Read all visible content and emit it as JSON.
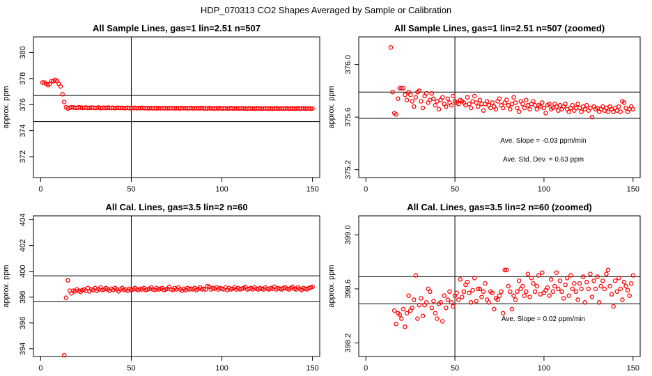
{
  "page_title": "HDP_070313  CO2 Shapes Averaged by Sample or Calibration",
  "colors": {
    "points": "#ff0000",
    "axes": "#000000",
    "background": "#ffffff"
  },
  "chart_data": [
    {
      "type": "scatter",
      "title": "All Sample Lines, gas=1 lin=2.51 n=507",
      "xlabel": "",
      "ylabel": "approx. ppm",
      "xlim": [
        -4,
        154
      ],
      "ylim": [
        370.4,
        381.2
      ],
      "xticks": [
        0,
        50,
        100,
        150
      ],
      "yticks": [
        372,
        374,
        376,
        378,
        380
      ],
      "hlines": [
        376.7,
        374.7
      ],
      "vlines": [
        50
      ],
      "series": [
        {
          "name": "sample",
          "x_start": 1,
          "x_end": 150,
          "values": [
            377.7,
            377.7,
            377.6,
            377.5,
            377.6,
            377.8,
            377.8,
            377.9,
            377.8,
            377.6,
            377.4,
            376.8,
            376.2,
            375.8,
            375.7,
            375.75,
            375.8,
            375.78,
            375.76,
            375.74,
            375.8,
            375.77,
            375.75,
            375.76,
            375.78,
            375.74,
            375.75,
            375.77,
            375.76,
            375.74,
            375.75,
            375.78,
            375.73,
            375.75,
            375.76,
            375.74,
            375.77,
            375.75,
            375.74,
            375.76,
            375.73,
            375.75,
            375.76,
            375.74,
            375.75,
            375.73,
            375.74,
            375.76,
            375.73,
            375.72,
            375.74,
            375.75,
            375.72,
            375.74,
            375.73,
            375.75,
            375.72,
            375.74,
            375.73,
            375.71,
            375.74,
            375.72,
            375.73,
            375.71,
            375.74,
            375.72,
            375.73,
            375.72,
            375.74,
            375.71,
            375.73,
            375.72,
            375.74,
            375.71,
            375.73,
            375.72,
            375.71,
            375.74,
            375.72,
            375.73,
            375.71,
            375.72,
            375.74,
            375.71,
            375.72,
            375.73,
            375.71,
            375.72,
            375.74,
            375.71,
            375.72,
            375.7,
            375.73,
            375.71,
            375.72,
            375.7,
            375.72,
            375.71,
            375.73,
            375.7,
            375.71,
            375.72,
            375.7,
            375.71,
            375.73,
            375.7,
            375.71,
            375.72,
            375.7,
            375.71,
            375.72,
            375.7,
            375.71,
            375.69,
            375.72,
            375.7,
            375.71,
            375.69,
            375.72,
            375.7,
            375.71,
            375.69,
            375.7,
            375.72,
            375.69,
            375.7,
            375.71,
            375.69,
            375.7,
            375.72,
            375.69,
            375.7,
            375.71,
            375.69,
            375.7,
            375.72,
            375.69,
            375.7,
            375.71,
            375.69,
            375.7,
            375.71,
            375.69,
            375.7,
            375.72,
            375.69,
            375.7,
            375.71,
            375.69,
            375.7
          ]
        }
      ],
      "annotations": []
    },
    {
      "type": "scatter",
      "title": "All Sample Lines, gas=1 lin=2.51 n=507 (zoomed)",
      "xlabel": "",
      "ylabel": "approx. ppm",
      "xlim": [
        -4,
        154
      ],
      "ylim": [
        375.14,
        376.21
      ],
      "xticks": [
        0,
        50,
        100,
        150
      ],
      "yticks": [
        375.2,
        375.6,
        376.0
      ],
      "hlines": [
        375.79,
        375.59
      ],
      "vlines": [
        50
      ],
      "series": [
        {
          "name": "sample-zoomed",
          "x_start": 14,
          "x_end": 150,
          "values": [
            376.13,
            375.79,
            375.63,
            375.62,
            375.74,
            375.82,
            375.82,
            375.82,
            375.77,
            375.73,
            375.79,
            375.77,
            375.72,
            375.68,
            375.75,
            375.79,
            375.8,
            375.72,
            375.67,
            375.76,
            375.78,
            375.71,
            375.73,
            375.78,
            375.74,
            375.69,
            375.72,
            375.66,
            375.73,
            375.75,
            375.7,
            375.68,
            375.74,
            375.71,
            375.69,
            375.76,
            375.72,
            375.71,
            375.7,
            375.73,
            375.72,
            375.71,
            375.69,
            375.75,
            375.7,
            375.67,
            375.72,
            375.76,
            375.71,
            375.68,
            375.73,
            375.7,
            375.65,
            375.7,
            375.72,
            375.69,
            375.67,
            375.71,
            375.68,
            375.66,
            375.72,
            375.74,
            375.69,
            375.67,
            375.71,
            375.73,
            375.69,
            375.66,
            375.7,
            375.75,
            375.71,
            375.67,
            375.64,
            375.72,
            375.7,
            375.67,
            375.73,
            375.69,
            375.66,
            375.7,
            375.72,
            375.69,
            375.66,
            375.69,
            375.68,
            375.71,
            375.67,
            375.63,
            375.69,
            375.7,
            375.66,
            375.67,
            375.7,
            375.68,
            375.65,
            375.69,
            375.66,
            375.68,
            375.7,
            375.66,
            375.64,
            375.67,
            375.69,
            375.65,
            375.67,
            375.7,
            375.67,
            375.64,
            375.68,
            375.66,
            375.69,
            375.65,
            375.67,
            375.6,
            375.68,
            375.66,
            375.67,
            375.64,
            375.66,
            375.68,
            375.65,
            375.67,
            375.64,
            375.68,
            375.66,
            375.64,
            375.67,
            375.65,
            375.68,
            375.64,
            375.72,
            375.71,
            375.67,
            375.64,
            375.66,
            375.68,
            375.66
          ]
        }
      ],
      "annotations": [
        {
          "label": "Ave. Slope =",
          "value": "-0.03",
          "unit": "ppm/min"
        },
        {
          "label": "Ave. Std. Dev. =",
          "value": "0.63",
          "unit": "ppm"
        }
      ]
    },
    {
      "type": "scatter",
      "title": "All Cal. Lines, gas=3.5 lin=2 n=60",
      "xlabel": "",
      "ylabel": "approx. ppm",
      "xlim": [
        -4,
        154
      ],
      "ylim": [
        393.4,
        404.3
      ],
      "xticks": [
        0,
        50,
        100,
        150
      ],
      "yticks": [
        394,
        396,
        398,
        400,
        402,
        404
      ],
      "hlines": [
        399.65,
        397.65
      ],
      "vlines": [
        50
      ],
      "series": [
        {
          "name": "cal",
          "x_start": 13,
          "x_end": 150,
          "values": [
            393.5,
            397.95,
            399.3,
            398.5,
            398.3,
            398.5,
            398.45,
            398.6,
            398.5,
            398.4,
            398.55,
            398.6,
            398.5,
            398.7,
            398.45,
            398.6,
            398.55,
            398.7,
            398.5,
            398.6,
            398.75,
            398.55,
            398.6,
            398.7,
            398.6,
            398.5,
            398.65,
            398.55,
            398.7,
            398.6,
            398.45,
            398.6,
            398.7,
            398.55,
            398.6,
            398.5,
            398.65,
            398.55,
            398.6,
            398.7,
            398.6,
            398.55,
            398.65,
            398.6,
            398.7,
            398.55,
            398.6,
            398.65,
            398.75,
            398.6,
            398.55,
            398.7,
            398.6,
            398.65,
            398.7,
            398.55,
            398.6,
            398.65,
            398.8,
            398.6,
            398.55,
            398.7,
            398.6,
            398.75,
            398.6,
            398.5,
            398.65,
            398.55,
            398.7,
            398.6,
            398.65,
            398.6,
            398.7,
            398.55,
            398.65,
            398.75,
            398.6,
            398.65,
            398.6,
            398.85,
            398.8,
            398.6,
            398.7,
            398.65,
            398.75,
            398.6,
            398.7,
            398.65,
            398.6,
            398.75,
            398.55,
            398.7,
            398.6,
            398.65,
            398.75,
            398.6,
            398.7,
            398.6,
            398.65,
            398.7,
            398.8,
            398.6,
            398.65,
            398.7,
            398.6,
            398.75,
            398.65,
            398.6,
            398.7,
            398.65,
            398.6,
            398.75,
            398.65,
            398.6,
            398.7,
            398.65,
            398.8,
            398.6,
            398.7,
            398.65,
            398.6,
            398.7,
            398.75,
            398.65,
            398.6,
            398.7,
            398.8,
            398.65,
            398.6,
            398.75,
            398.65,
            398.55,
            398.7,
            398.65,
            398.6,
            398.7,
            398.75,
            398.8
          ]
        }
      ],
      "annotations": []
    },
    {
      "type": "scatter",
      "title": "All Cal. Lines, gas=3.5 lin=2 n=60 (zoomed)",
      "xlabel": "",
      "ylabel": "approx. ppm",
      "xlim": [
        -4,
        154
      ],
      "ylim": [
        398.1,
        399.14
      ],
      "xticks": [
        0,
        50,
        100,
        150
      ],
      "yticks": [
        398.2,
        398.6,
        399.0
      ],
      "hlines": [
        398.69,
        398.49
      ],
      "vlines": [
        50
      ],
      "series": [
        {
          "name": "cal-zoomed",
          "x_start": 16,
          "x_end": 150,
          "values": [
            398.44,
            398.34,
            398.42,
            398.41,
            398.38,
            398.45,
            398.32,
            398.42,
            398.55,
            398.44,
            398.46,
            398.52,
            398.7,
            398.38,
            398.48,
            398.53,
            398.4,
            398.48,
            398.5,
            398.6,
            398.58,
            398.46,
            398.51,
            398.42,
            398.38,
            398.49,
            398.5,
            398.36,
            398.55,
            398.46,
            398.52,
            398.58,
            398.5,
            398.47,
            398.55,
            398.57,
            398.52,
            398.67,
            398.54,
            398.58,
            398.63,
            398.65,
            398.57,
            398.5,
            398.59,
            398.68,
            398.51,
            398.6,
            398.6,
            398.54,
            398.58,
            398.64,
            398.52,
            398.5,
            398.58,
            398.57,
            398.45,
            398.53,
            398.52,
            398.55,
            398.58,
            398.42,
            398.74,
            398.74,
            398.62,
            398.58,
            398.45,
            398.55,
            398.52,
            398.58,
            398.66,
            398.6,
            398.62,
            398.55,
            398.58,
            398.71,
            398.54,
            398.68,
            398.64,
            398.58,
            398.62,
            398.7,
            398.56,
            398.72,
            398.57,
            398.59,
            398.61,
            398.55,
            398.67,
            398.58,
            398.62,
            398.72,
            398.6,
            398.66,
            398.58,
            398.53,
            398.63,
            398.68,
            398.55,
            398.7,
            398.6,
            398.64,
            398.58,
            398.52,
            398.64,
            398.6,
            398.69,
            398.5,
            398.65,
            398.6,
            398.71,
            398.54,
            398.66,
            398.6,
            398.69,
            398.5,
            398.62,
            398.66,
            398.6,
            398.71,
            398.74,
            398.62,
            398.56,
            398.47,
            398.66,
            398.58,
            398.68,
            398.6,
            398.52,
            398.65,
            398.62,
            398.59,
            398.55,
            398.64,
            398.7
          ]
        }
      ],
      "annotations": [
        {
          "label": "Ave. Slope =",
          "value": "0.02",
          "unit": "ppm/min"
        }
      ]
    }
  ]
}
